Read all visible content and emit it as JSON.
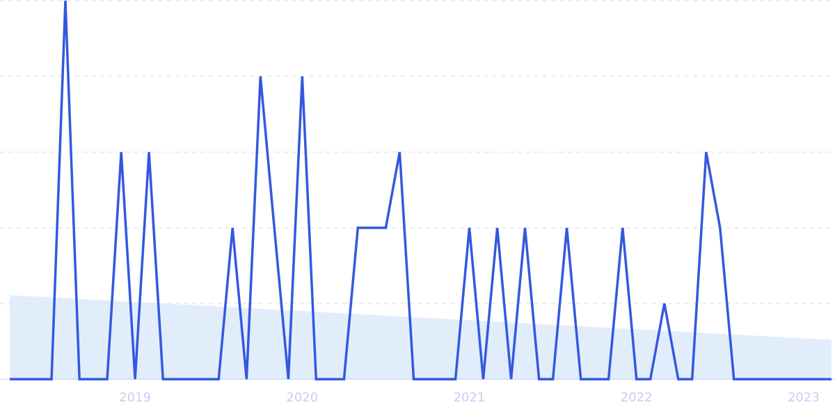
{
  "chart_data": {
    "type": "line",
    "x": [
      2018.25,
      2018.333,
      2018.417,
      2018.5,
      2018.583,
      2018.667,
      2018.75,
      2018.833,
      2018.917,
      2019,
      2019.083,
      2019.167,
      2019.25,
      2019.333,
      2019.417,
      2019.5,
      2019.583,
      2019.667,
      2019.75,
      2019.833,
      2019.917,
      2020,
      2020.083,
      2020.167,
      2020.25,
      2020.333,
      2020.417,
      2020.5,
      2020.583,
      2020.667,
      2020.75,
      2020.833,
      2020.917,
      2021,
      2021.083,
      2021.167,
      2021.25,
      2021.333,
      2021.417,
      2021.5,
      2021.583,
      2021.667,
      2021.75,
      2021.833,
      2021.917,
      2022,
      2022.083,
      2022.167,
      2022.25,
      2022.333,
      2022.417,
      2022.5,
      2022.583,
      2022.667,
      2022.75,
      2022.833,
      2022.917,
      2023,
      2023.083,
      2023.167
    ],
    "series": [
      {
        "color": "#3358e0",
        "values": [
          0,
          0,
          0,
          0,
          5,
          0,
          0,
          0,
          3,
          0,
          3,
          0,
          0,
          0,
          0,
          0,
          2,
          0,
          4,
          2,
          0,
          4,
          0,
          0,
          0,
          2,
          2,
          2,
          3,
          0,
          0,
          0,
          0,
          2,
          0,
          2,
          0,
          2,
          0,
          0,
          2,
          0,
          0,
          0,
          2,
          0,
          0,
          1,
          0,
          0,
          3,
          2,
          0,
          0,
          0,
          0,
          0,
          0,
          0,
          0
        ]
      }
    ],
    "trend": {
      "color": "#dbe8fb",
      "values": [
        1.11,
        0.52
      ]
    },
    "xlim": [
      2018.25,
      2023.167
    ],
    "xticks": [
      2019,
      2020,
      2021,
      2022,
      2023
    ],
    "ylim": [
      0,
      5
    ],
    "yticks": [
      0,
      1,
      2,
      3,
      4,
      5
    ],
    "grid": true
  }
}
